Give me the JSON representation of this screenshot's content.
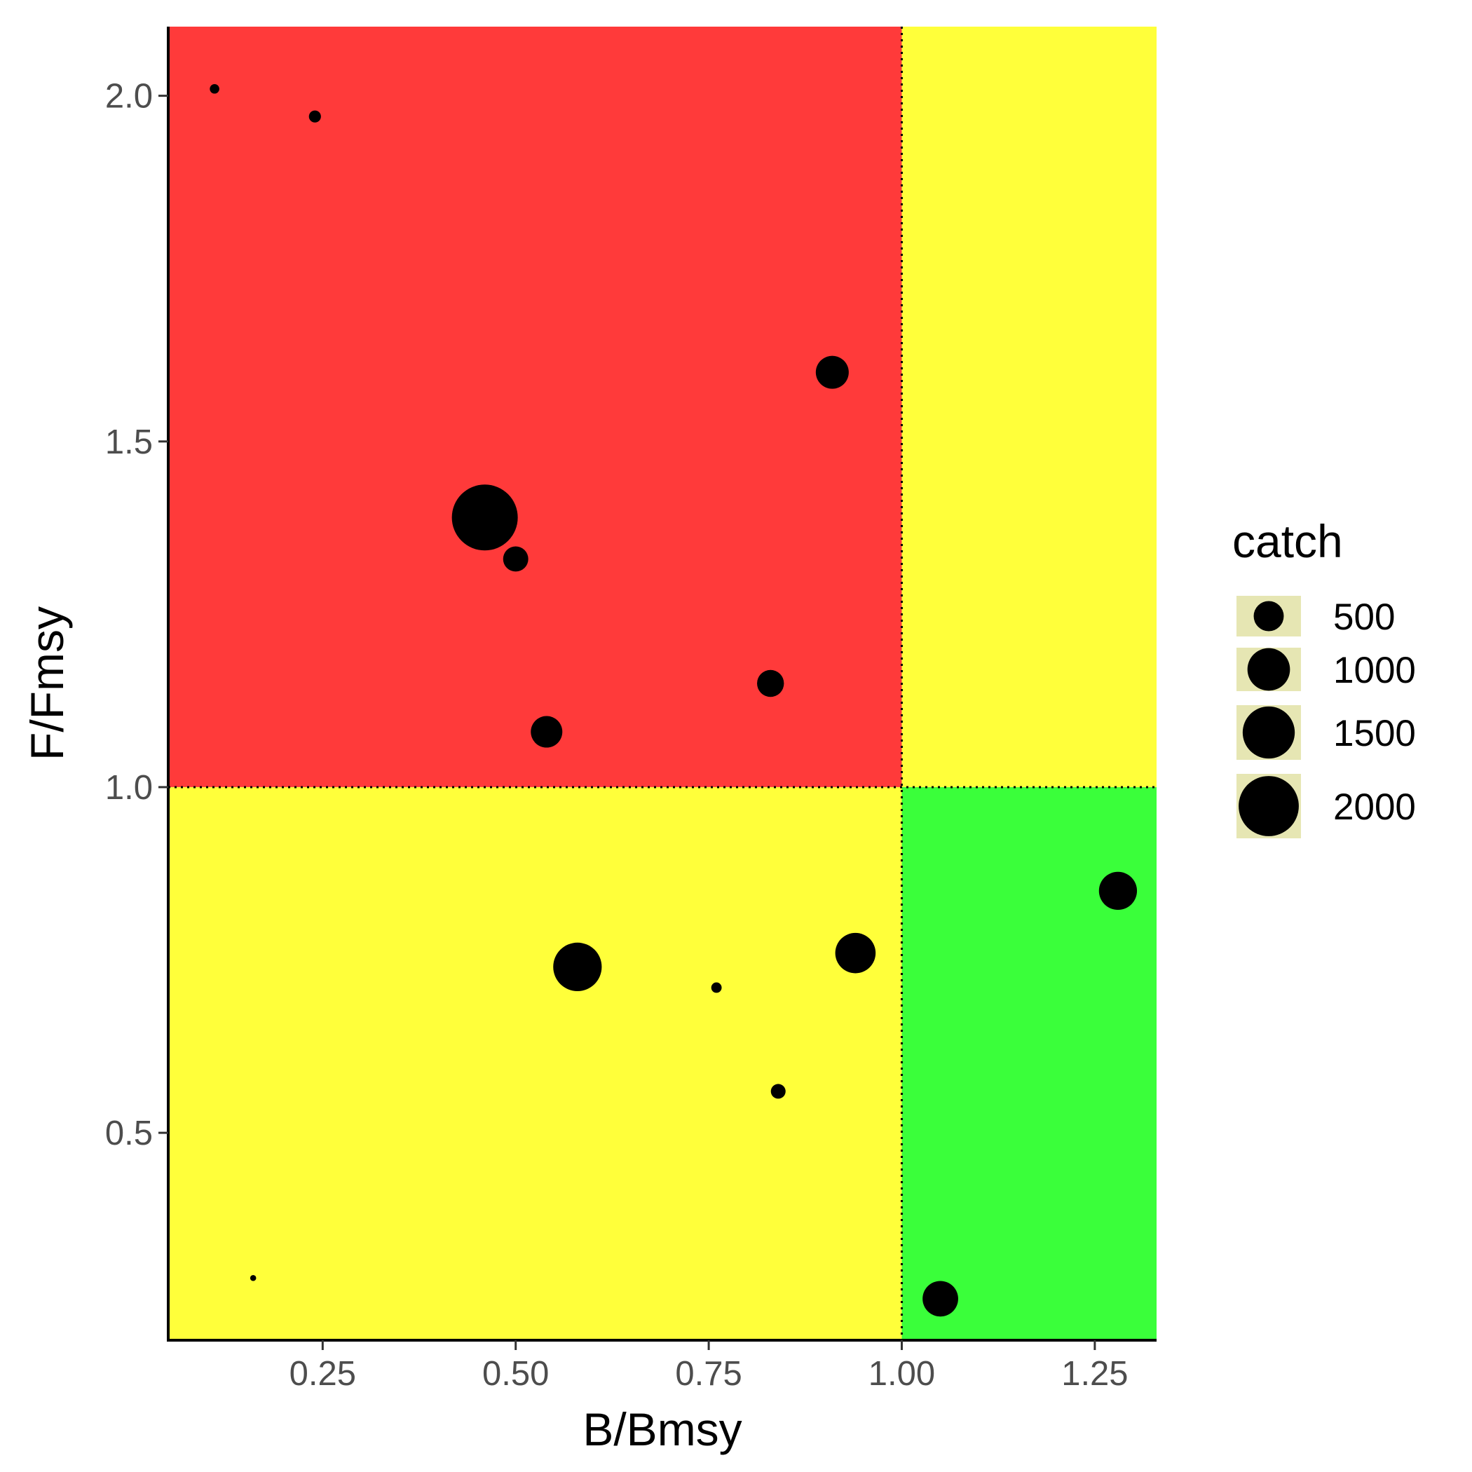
{
  "chart_data": {
    "type": "scatter",
    "xlabel": "B/Bmsy",
    "ylabel": "F/Fmsy",
    "xlim": [
      0.05,
      1.33
    ],
    "ylim": [
      0.2,
      2.1
    ],
    "x_ticks": [
      0.25,
      0.5,
      0.75,
      1.0
    ],
    "x_tick_labels": [
      "0.25",
      "0.50",
      "0.75",
      "1.00"
    ],
    "x_ticks_extra": [
      1.25
    ],
    "x_tick_labels_extra": [
      "1.25"
    ],
    "y_ticks": [
      0.5,
      1.0,
      1.5,
      2.0
    ],
    "y_tick_labels": [
      "0.5",
      "1.0",
      "1.5",
      "2.0"
    ],
    "reference_lines": {
      "x": 1.0,
      "y": 1.0,
      "style": "dotted"
    },
    "grid": false,
    "quadrants": {
      "top_left": "#ff3a3a",
      "top_right": "#ffff3a",
      "bottom_left": "#ffff3a",
      "bottom_right": "#3aff3a"
    },
    "size_variable": "catch",
    "points": [
      {
        "x": 0.11,
        "y": 2.01,
        "catch": 50
      },
      {
        "x": 0.24,
        "y": 1.97,
        "catch": 80
      },
      {
        "x": 0.91,
        "y": 1.6,
        "catch": 600
      },
      {
        "x": 0.46,
        "y": 1.39,
        "catch": 2400
      },
      {
        "x": 0.5,
        "y": 1.33,
        "catch": 350
      },
      {
        "x": 0.83,
        "y": 1.15,
        "catch": 400
      },
      {
        "x": 0.54,
        "y": 1.08,
        "catch": 550
      },
      {
        "x": 1.28,
        "y": 0.85,
        "catch": 800
      },
      {
        "x": 0.94,
        "y": 0.76,
        "catch": 900
      },
      {
        "x": 0.58,
        "y": 0.74,
        "catch": 1300
      },
      {
        "x": 0.76,
        "y": 0.71,
        "catch": 60
      },
      {
        "x": 0.84,
        "y": 0.56,
        "catch": 120
      },
      {
        "x": 0.16,
        "y": 0.29,
        "catch": 20
      },
      {
        "x": 1.05,
        "y": 0.26,
        "catch": 700
      }
    ],
    "legend": {
      "title": "catch",
      "position": "right",
      "key_fill": "#e6e6b3",
      "entries": [
        {
          "label": "500",
          "value": 500
        },
        {
          "label": "1000",
          "value": 1000
        },
        {
          "label": "1500",
          "value": 1500
        },
        {
          "label": "2000",
          "value": 2000
        }
      ]
    },
    "point_color": "#000000"
  }
}
